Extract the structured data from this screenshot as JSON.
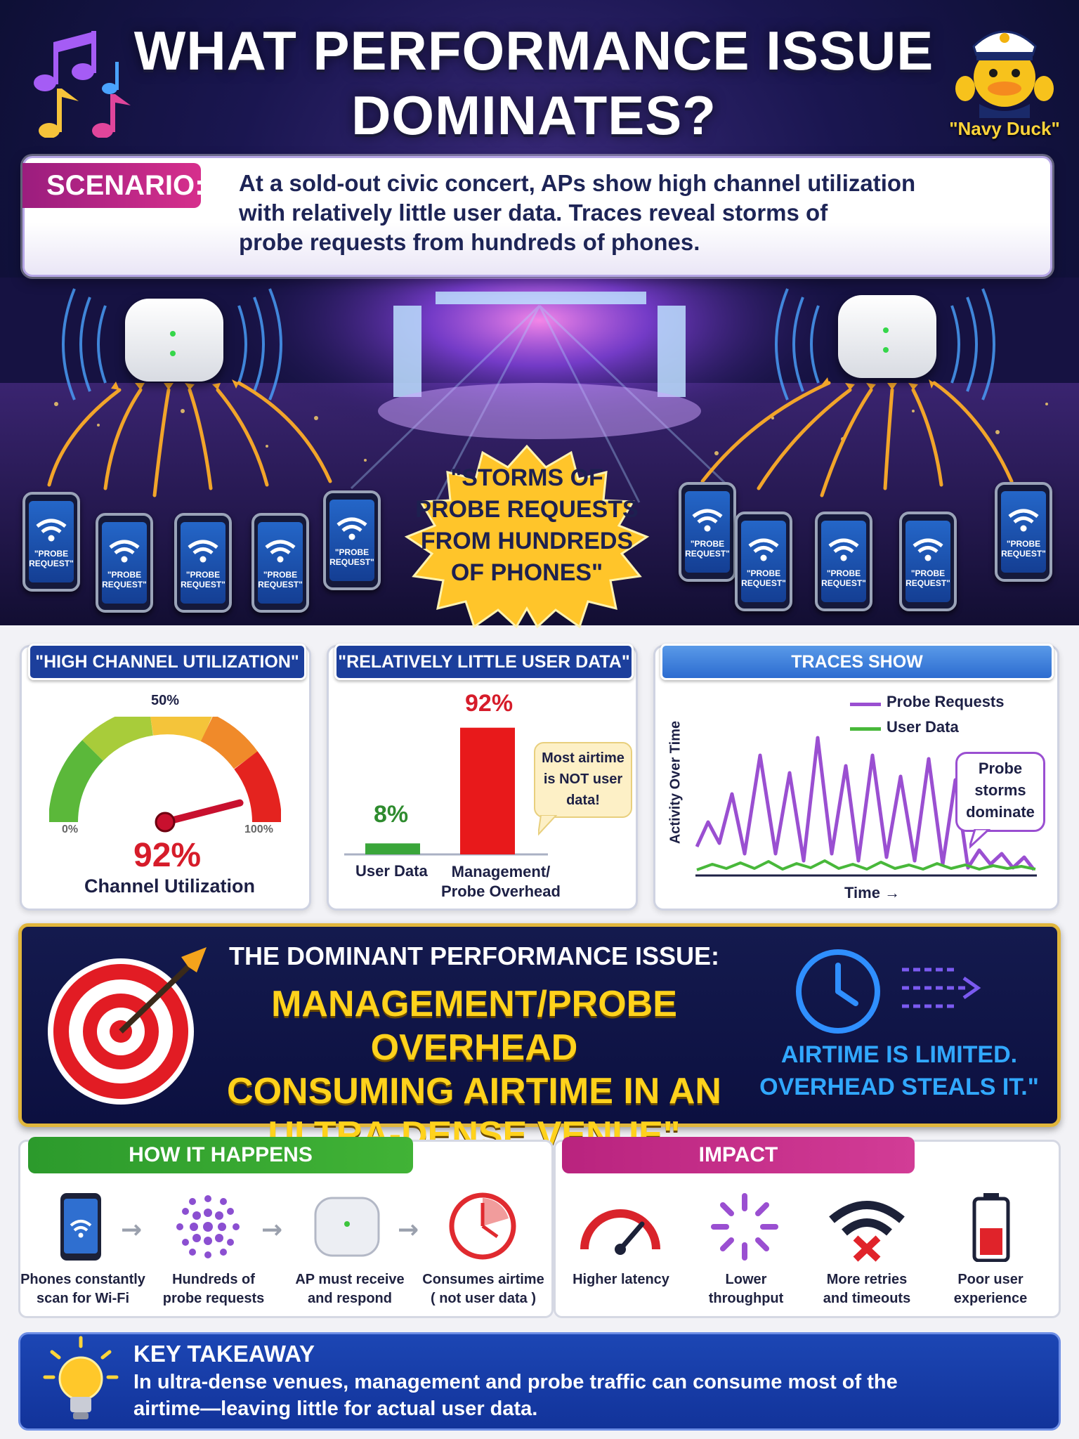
{
  "header": {
    "title_line1": "WHAT PERFORMANCE ISSUE",
    "title_line2": "DOMINATES?",
    "mascot_label": "\"Navy Duck\""
  },
  "scenario": {
    "tag": "SCENARIO:",
    "line1": "At a sold-out civic concert, APs show high channel utilization",
    "line2": "with relatively little user data. Traces reveal storms of",
    "line3": "probe requests from hundreds of phones."
  },
  "scene": {
    "storm_line1": "\"STORMS OF",
    "storm_line2": "PROBE REQUESTS",
    "storm_line3": "FROM HUNDREDS",
    "storm_line4": "OF PHONES\"",
    "phone_label_line1": "\"PROBE",
    "phone_label_line2": "REQUEST\""
  },
  "panel_utilization": {
    "tag": "\"HIGH CHANNEL UTILIZATION\"",
    "mid_tick": "50%",
    "left_tick": "0%",
    "right_tick": "100%",
    "value": "92%",
    "value_fraction": 0.92,
    "caption": "Channel Utilization"
  },
  "panel_userdata": {
    "tag": "\"RELATIVELY LITTLE USER DATA\"",
    "bar1_value": "8%",
    "bar1_label": "User Data",
    "bar2_value": "92%",
    "bar2_label_line1": "Management/",
    "bar2_label_line2": "Probe Overhead",
    "note_line1": "Most airtime",
    "note_line2": "is NOT user",
    "note_line3": "data!",
    "colors": {
      "user": "#3aa63a",
      "overhead": "#e8191b"
    }
  },
  "panel_traces": {
    "tag": "TRACES SHOW",
    "legend_probe": "Probe Requests",
    "legend_user": "User Data",
    "ylabel": "Activity Over Time",
    "xlabel": "Time →",
    "note_line1": "Probe",
    "note_line2": "storms",
    "note_line3": "dominate",
    "colors": {
      "probe": "#9a4fd1",
      "user": "#48b83a"
    }
  },
  "issue": {
    "heading": "THE DOMINANT PERFORMANCE ISSUE:",
    "line1": "MANAGEMENT/PROBE OVERHEAD",
    "line2": "CONSUMING AIRTIME IN AN",
    "line3": "ULTRA-DENSE VENUE\"",
    "note_line1": "AIRTIME IS LIMITED.",
    "note_line2": "OVERHEAD STEALS IT.\""
  },
  "how": {
    "tag": "HOW IT HAPPENS",
    "steps": [
      {
        "line1": "Phones constantly",
        "line2": "scan for Wi-Fi",
        "icon": "phone-wifi-icon"
      },
      {
        "line1": "Hundreds of",
        "line2": "probe requests",
        "icon": "dots-cluster-icon"
      },
      {
        "line1": "AP must receive",
        "line2": "and respond",
        "icon": "access-point-icon"
      },
      {
        "line1": "Consumes airtime",
        "line2": "( not user data )",
        "icon": "airtime-clock-icon"
      }
    ]
  },
  "impact": {
    "tag": "IMPACT",
    "items": [
      {
        "line1": "Higher latency",
        "line2": "",
        "icon": "speedometer-icon"
      },
      {
        "line1": "Lower",
        "line2": "throughput",
        "icon": "loading-spinner-icon"
      },
      {
        "line1": "More retries",
        "line2": "and timeouts",
        "icon": "wifi-error-icon"
      },
      {
        "line1": "Poor user",
        "line2": "experience",
        "icon": "low-battery-icon"
      }
    ]
  },
  "takeaway": {
    "title": "KEY TAKEAWAY",
    "line1": "In ultra-dense venues, management and probe traffic can consume most of the",
    "line2": "airtime—leaving little for actual user data."
  }
}
